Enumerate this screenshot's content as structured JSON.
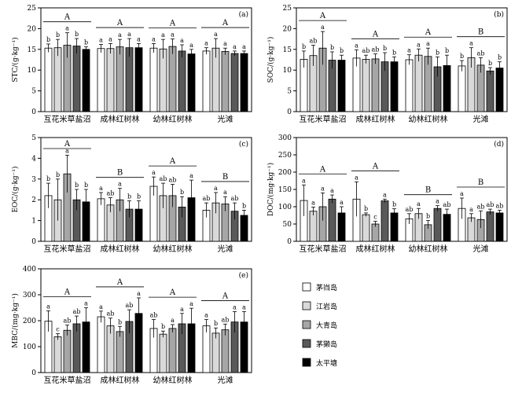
{
  "legend": {
    "entries": [
      {
        "name": "茅岿岛",
        "color": "#ffffff"
      },
      {
        "name": "江岩岛",
        "color": "#d9d9d9"
      },
      {
        "name": "大青岛",
        "color": "#a6a6a6"
      },
      {
        "name": "茅獭岛",
        "color": "#595959"
      },
      {
        "name": "太平塘",
        "color": "#000000"
      }
    ]
  },
  "chart_data": [
    {
      "type": "bar",
      "panel": "(a)",
      "ylabel": "STC/(g·kg⁻¹)",
      "ylim": [
        0,
        25
      ],
      "yticks": [
        0,
        5,
        10,
        15,
        20,
        25
      ],
      "categories": [
        "互花米草盐沼",
        "成林红树林",
        "幼林红树林",
        "光滩"
      ],
      "group_letters": [
        "A",
        "A",
        "A",
        "A"
      ],
      "values": [
        [
          15.3,
          15.4,
          16.0,
          15.8,
          15.0
        ],
        [
          15.2,
          15.2,
          15.6,
          15.4,
          15.4
        ],
        [
          15.3,
          15.1,
          15.7,
          14.6,
          13.9
        ],
        [
          14.6,
          15.3,
          14.5,
          14.0,
          14.0
        ]
      ],
      "errors": [
        [
          1.0,
          2.0,
          3.0,
          1.8,
          0.6
        ],
        [
          1.0,
          1.2,
          1.8,
          2.2,
          1.0
        ],
        [
          1.1,
          2.3,
          1.8,
          1.5,
          1.1
        ],
        [
          0.8,
          2.3,
          0.8,
          0.6,
          0.6
        ]
      ],
      "letters": [
        [
          "b",
          "b",
          "a",
          "b",
          "b"
        ],
        [
          "a",
          "a",
          "a",
          "a",
          "a"
        ],
        [
          "a",
          "a",
          "a",
          "a",
          "a"
        ],
        [
          "a",
          "a",
          "a",
          "a",
          "a"
        ]
      ]
    },
    {
      "type": "bar",
      "panel": "(b)",
      "ylabel": "SOC/(g·kg⁻¹)",
      "ylim": [
        0,
        25
      ],
      "yticks": [
        0,
        5,
        10,
        15,
        20,
        25
      ],
      "categories": [
        "互花米草盐沼",
        "成林红树林",
        "幼林红树林",
        "光滩"
      ],
      "group_letters": [
        "A",
        "A",
        "A",
        "B"
      ],
      "values": [
        [
          12.6,
          13.5,
          15.3,
          12.4,
          12.4
        ],
        [
          12.9,
          12.6,
          12.7,
          12.0,
          12.0
        ],
        [
          12.5,
          13.6,
          13.3,
          10.8,
          11.1
        ],
        [
          11.0,
          13.0,
          11.2,
          9.8,
          10.5
        ]
      ],
      "errors": [
        [
          2.0,
          2.5,
          4.0,
          2.0,
          1.2
        ],
        [
          2.0,
          1.0,
          1.2,
          2.2,
          1.2
        ],
        [
          1.2,
          1.5,
          2.0,
          2.4,
          2.5
        ],
        [
          1.3,
          2.4,
          1.8,
          0.8,
          1.5
        ]
      ],
      "letters": [
        [
          "b",
          "ab",
          "a",
          "b",
          "b"
        ],
        [
          "a",
          "ab",
          "ab",
          "b",
          "b"
        ],
        [
          "a",
          "a",
          "a",
          "b",
          "b"
        ],
        [
          "b",
          "a",
          "ab",
          "b",
          "b"
        ]
      ]
    },
    {
      "type": "bar",
      "panel": "(c)",
      "ylabel": "EOC/(g·kg⁻¹)",
      "ylim": [
        0,
        5
      ],
      "yticks": [
        0,
        1,
        2,
        3,
        4,
        5
      ],
      "categories": [
        "互花米草盐沼",
        "成林红树林",
        "幼林红树林",
        "光滩"
      ],
      "group_letters": [
        "A",
        "B",
        "A",
        "B"
      ],
      "values": [
        [
          2.2,
          2.0,
          3.25,
          2.0,
          1.9
        ],
        [
          2.05,
          1.75,
          2.0,
          1.55,
          1.55
        ],
        [
          2.65,
          2.2,
          2.2,
          1.65,
          2.1
        ],
        [
          1.5,
          1.85,
          1.8,
          1.45,
          1.25
        ]
      ],
      "errors": [
        [
          0.6,
          1.0,
          0.9,
          0.5,
          0.6
        ],
        [
          0.3,
          0.35,
          0.55,
          0.4,
          0.4
        ],
        [
          0.45,
          0.6,
          0.55,
          0.5,
          0.85
        ],
        [
          0.35,
          0.5,
          0.35,
          0.4,
          0.25
        ]
      ],
      "letters": [
        [
          "b",
          "b",
          "a",
          "b",
          "b"
        ],
        [
          "a",
          "ab",
          "a",
          "b",
          "b"
        ],
        [
          "a",
          "ab",
          "ab",
          "b",
          "a"
        ],
        [
          "ab",
          "a",
          "a",
          "ab",
          "b"
        ]
      ]
    },
    {
      "type": "bar",
      "panel": "(d)",
      "ylabel": "DOC/(mg·kg⁻¹)",
      "ylim": [
        0,
        300
      ],
      "yticks": [
        0,
        50,
        100,
        150,
        200,
        250,
        300
      ],
      "categories": [
        "互花米草盐沼",
        "成林红树林",
        "幼林红树林",
        "光滩"
      ],
      "group_letters": [
        "A",
        "A",
        "B",
        "B"
      ],
      "values": [
        [
          118,
          87,
          100,
          122,
          82
        ],
        [
          122,
          77,
          50,
          117,
          82
        ],
        [
          65,
          80,
          48,
          95,
          78
        ],
        [
          95,
          68,
          63,
          85,
          82
        ]
      ],
      "errors": [
        [
          45,
          12,
          40,
          12,
          18
        ],
        [
          50,
          5,
          8,
          5,
          12
        ],
        [
          15,
          15,
          12,
          8,
          15
        ],
        [
          30,
          12,
          25,
          8,
          8
        ]
      ],
      "letters": [
        [
          "a",
          "a",
          "a",
          "a",
          "a"
        ],
        [
          "a",
          "b",
          "c",
          "a",
          "b"
        ],
        [
          "ab",
          "a",
          "b",
          "a",
          "ab"
        ],
        [
          "a",
          "a",
          "ab",
          "ab",
          "ab"
        ]
      ]
    },
    {
      "type": "bar",
      "panel": "(e)",
      "ylabel": "MBC/(mg·kg⁻¹)",
      "ylim": [
        0,
        400
      ],
      "yticks": [
        0,
        100,
        200,
        300,
        400
      ],
      "categories": [
        "互花米草盐沼",
        "成林红树林",
        "幼林红树林",
        "光滩"
      ],
      "group_letters": [
        "A",
        "A",
        "A",
        "A"
      ],
      "values": [
        [
          198,
          138,
          163,
          188,
          195
        ],
        [
          215,
          180,
          158,
          197,
          228
        ],
        [
          170,
          148,
          170,
          188,
          188
        ],
        [
          180,
          152,
          165,
          195,
          195
        ]
      ],
      "errors": [
        [
          40,
          12,
          20,
          30,
          55
        ],
        [
          22,
          30,
          20,
          45,
          60
        ],
        [
          35,
          12,
          15,
          40,
          60
        ],
        [
          25,
          20,
          22,
          40,
          40
        ]
      ],
      "letters": [
        [
          "a",
          "c",
          "ab",
          "ab",
          "a"
        ],
        [
          "a",
          "ab",
          "b",
          "ab",
          "a"
        ],
        [
          "ab",
          "b",
          "a",
          "a",
          "a"
        ],
        [
          "a",
          "b",
          "ab",
          "a",
          "a"
        ]
      ]
    }
  ]
}
